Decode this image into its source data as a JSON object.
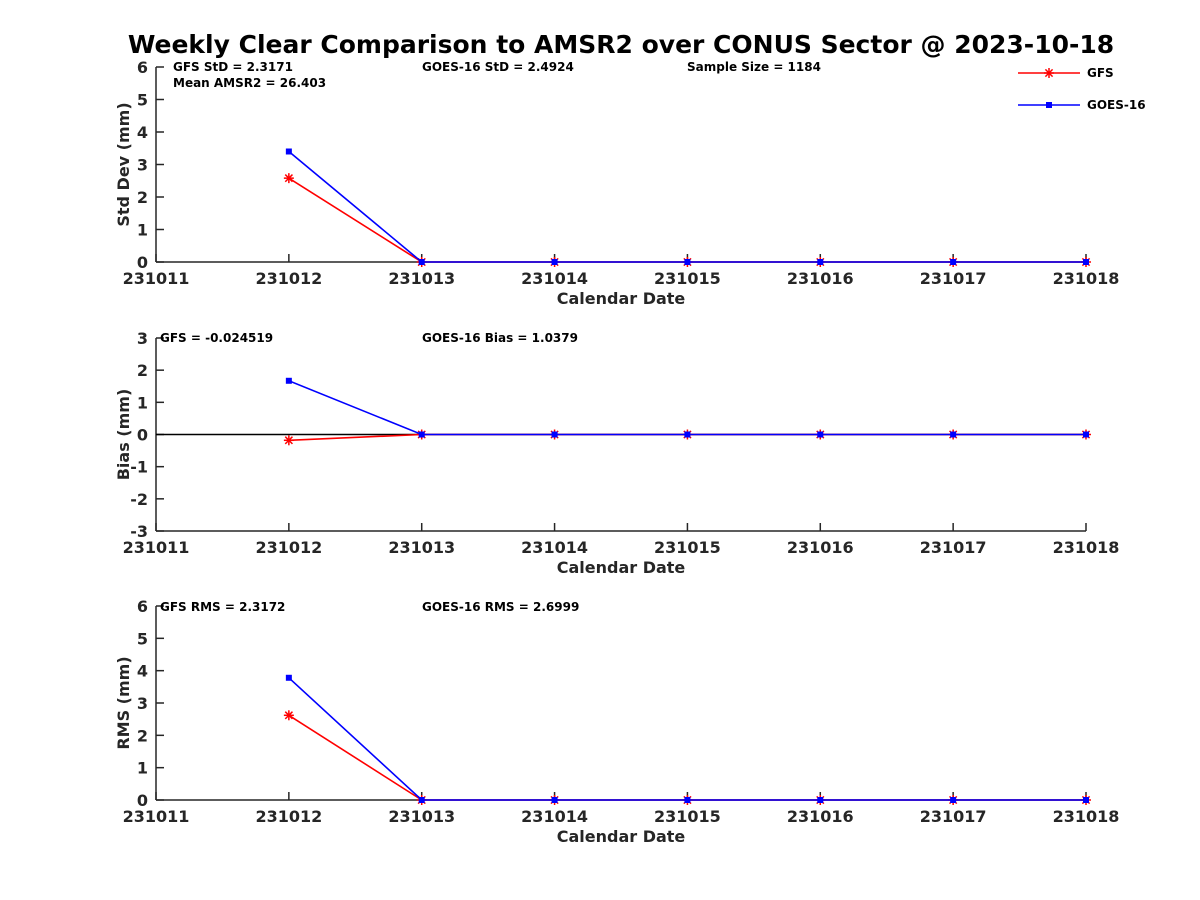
{
  "title": "Weekly Clear Comparison to AMSR2 over CONUS Sector @ 2023-10-18",
  "legend": {
    "placement": "top-right",
    "entries": [
      {
        "name": "GFS",
        "color": "#ff0000",
        "marker": "asterisk"
      },
      {
        "name": "GOES-16",
        "color": "#0000ff",
        "marker": "square"
      }
    ]
  },
  "chart_data": [
    {
      "type": "line",
      "x": [
        "231011",
        "231012",
        "231013",
        "231014",
        "231015",
        "231016",
        "231017",
        "231018"
      ],
      "xlabel": "Calendar Date",
      "ylabel": "Std Dev (mm)",
      "ylim": [
        0,
        6
      ],
      "yticks": [
        "0",
        "1",
        "2",
        "3",
        "4",
        "5",
        "6"
      ],
      "grid": false,
      "annotations": [
        "GFS StD = 2.3171",
        "Mean AMSR2 = 26.403",
        "GOES-16 StD = 2.4924",
        "Sample Size = 1184"
      ],
      "series": [
        {
          "name": "GFS",
          "color": "#ff0000",
          "values": [
            null,
            2.58,
            0,
            0,
            0,
            0,
            0,
            0
          ]
        },
        {
          "name": "GOES-16",
          "color": "#0000ff",
          "values": [
            null,
            3.4,
            0,
            0,
            0,
            0,
            0,
            0
          ]
        }
      ]
    },
    {
      "type": "line",
      "x": [
        "231011",
        "231012",
        "231013",
        "231014",
        "231015",
        "231016",
        "231017",
        "231018"
      ],
      "xlabel": "Calendar Date",
      "ylabel": "Bias (mm)",
      "ylim": [
        -3,
        3
      ],
      "yticks": [
        "-3",
        "-2",
        "-1",
        "0",
        "1",
        "2",
        "3"
      ],
      "grid": false,
      "zero_line": true,
      "annotations": [
        "GFS = -0.024519",
        "GOES-16 Bias  = 1.0379"
      ],
      "series": [
        {
          "name": "GFS",
          "color": "#ff0000",
          "values": [
            null,
            -0.18,
            0,
            0,
            0,
            0,
            0,
            0
          ]
        },
        {
          "name": "GOES-16",
          "color": "#0000ff",
          "values": [
            null,
            1.67,
            0,
            0,
            0,
            0,
            0,
            0
          ]
        }
      ]
    },
    {
      "type": "line",
      "x": [
        "231011",
        "231012",
        "231013",
        "231014",
        "231015",
        "231016",
        "231017",
        "231018"
      ],
      "xlabel": "Calendar Date",
      "ylabel": "RMS (mm)",
      "ylim": [
        0,
        6
      ],
      "yticks": [
        "0",
        "1",
        "2",
        "3",
        "4",
        "5",
        "6"
      ],
      "grid": false,
      "annotations": [
        "GFS RMS = 2.3172",
        "GOES-16 RMS = 2.6999"
      ],
      "series": [
        {
          "name": "GFS",
          "color": "#ff0000",
          "values": [
            null,
            2.62,
            0,
            0,
            0,
            0,
            0,
            0
          ]
        },
        {
          "name": "GOES-16",
          "color": "#0000ff",
          "values": [
            null,
            3.78,
            0,
            0,
            0,
            0,
            0,
            0
          ]
        }
      ]
    }
  ]
}
